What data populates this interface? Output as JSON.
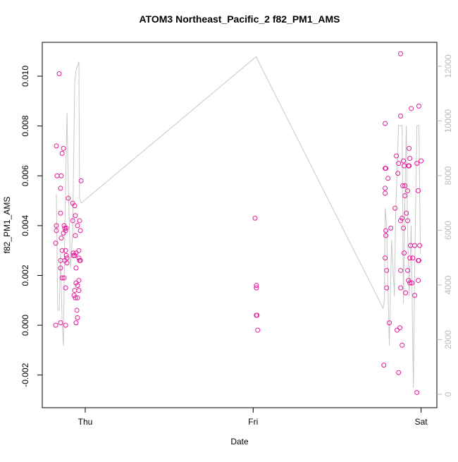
{
  "chart_data": {
    "type": "scatter",
    "title": "ATOM3 Northeast_Pacific_2 f82_PM1_AMS",
    "xlabel": "Date",
    "ylabel": "f82_PM1_AMS",
    "xlim": [
      -0.256,
      2.094
    ],
    "xticks": [
      {
        "value": 0,
        "label": "Thu"
      },
      {
        "value": 1,
        "label": "Fri"
      },
      {
        "value": 2,
        "label": "Sat"
      }
    ],
    "ylim": [
      -0.00331,
      0.01136
    ],
    "yticks": [
      -0.002,
      {
        "value": 0,
        "label": "0.000"
      },
      0.002,
      0.004,
      0.006,
      0.008,
      {
        "value": 0.01,
        "label": "0.010"
      }
    ],
    "y2lim": [
      -490,
      12877
    ],
    "y2ticks": [
      0,
      2000,
      4000,
      6000,
      8000,
      10000,
      12000
    ],
    "y2tick_color": "#bbbbbb",
    "series": [
      {
        "type": "scatter",
        "color": "#e6199a",
        "x": [
          -0.172,
          -0.168,
          -0.172,
          -0.172,
          -0.176,
          -0.176,
          -0.155,
          -0.147,
          -0.147,
          -0.143,
          -0.138,
          -0.13,
          -0.143,
          -0.138,
          -0.147,
          -0.147,
          -0.138,
          -0.126,
          -0.147,
          -0.117,
          -0.126,
          -0.122,
          -0.117,
          -0.13,
          -0.113,
          -0.113,
          -0.109,
          -0.109,
          -0.122,
          -0.117,
          -0.101,
          -0.117,
          -0.075,
          -0.075,
          -0.063,
          -0.059,
          -0.071,
          -0.063,
          -0.055,
          -0.038,
          -0.046,
          -0.034,
          -0.029,
          -0.038,
          -0.034,
          -0.029,
          -0.055,
          -0.055,
          -0.046,
          -0.063,
          -0.067,
          -0.059,
          -0.046,
          -0.038,
          -0.038,
          -0.05,
          -0.046,
          -0.055,
          -0.025,
          -0.059,
          -0.071,
          1.011,
          1.019,
          1.019,
          1.019,
          1.023,
          1.027,
          1.778,
          1.786,
          1.79,
          1.786,
          1.786,
          1.79,
          1.79,
          1.786,
          1.795,
          1.795,
          1.803,
          1.811,
          1.786,
          1.853,
          1.845,
          1.862,
          1.866,
          1.878,
          1.878,
          1.878,
          1.887,
          1.895,
          1.899,
          1.891,
          1.904,
          1.904,
          1.912,
          1.92,
          1.925,
          1.929,
          1.929,
          1.933,
          1.941,
          1.987,
          1.975,
          2.0,
          1.983,
          1.92,
          1.937,
          1.962,
          1.992,
          1.933,
          1.95,
          1.983,
          1.987,
          1.899,
          1.878,
          1.92,
          1.908,
          1.925,
          1.933,
          1.946,
          1.983,
          1.878,
          1.857,
          1.874,
          1.887,
          1.866,
          1.975,
          1.82,
          1.895,
          1.962
        ],
        "values": [
          0.0072,
          0.006,
          0.004,
          0.0038,
          0.0033,
          0.0,
          0.0101,
          0.0055,
          0.0045,
          0.006,
          0.0069,
          0.0071,
          0.0035,
          0.003,
          0.0026,
          0.0023,
          0.0019,
          0.0019,
          0.0001,
          0.0,
          0.004,
          0.0039,
          0.0038,
          0.0037,
          0.0039,
          0.0028,
          0.0027,
          0.0025,
          0.0026,
          0.0015,
          0.0051,
          0.003,
          0.0049,
          0.0042,
          0.0048,
          0.0044,
          0.0029,
          0.0028,
          0.0029,
          0.003,
          0.004,
          0.0042,
          0.0038,
          0.0027,
          0.0026,
          0.0026,
          0.0023,
          0.0017,
          0.0016,
          0.0014,
          0.0012,
          0.0011,
          0.0011,
          0.0018,
          0.0014,
          0.0006,
          0.0003,
          0.0001,
          0.0058,
          0.0036,
          0.0028,
          0.0043,
          0.0016,
          0.0015,
          0.0004,
          0.0004,
          -0.0002,
          -0.0016,
          0.0063,
          0.0063,
          0.0055,
          0.0053,
          0.0038,
          0.0036,
          0.0027,
          0.0022,
          0.0015,
          0.0059,
          0.0001,
          0.0081,
          0.0068,
          0.0047,
          0.0061,
          0.0065,
          0.0109,
          0.0084,
          0.0042,
          0.0043,
          0.0066,
          0.0064,
          0.0056,
          0.0052,
          0.0056,
          0.0045,
          0.0042,
          0.0064,
          0.0064,
          0.0071,
          0.0067,
          0.0087,
          0.0088,
          0.0065,
          0.0066,
          0.0054,
          0.0054,
          0.0032,
          0.0032,
          0.0032,
          0.0027,
          0.0027,
          0.0026,
          0.0026,
          0.0029,
          0.0022,
          0.0022,
          0.0013,
          0.0018,
          0.0017,
          0.0017,
          0.0018,
          0.0015,
          -0.0002,
          -0.0001,
          -0.0008,
          -0.0019,
          -0.0027,
          0.0039,
          0.0039,
          0.0012
        ]
      },
      {
        "type": "line",
        "axis": "y2",
        "color": "#c8c8c8",
        "x": [
          -0.172,
          -0.164,
          -0.155,
          -0.147,
          -0.138,
          -0.13,
          -0.122,
          -0.109,
          -0.101,
          -0.088,
          -0.075,
          -0.067,
          -0.063,
          -0.055,
          -0.038,
          -0.034,
          -0.025,
          1.019,
          1.027,
          1.774,
          1.782,
          1.786,
          1.795,
          1.803,
          1.811,
          1.824,
          1.841,
          1.849,
          1.866,
          1.887,
          1.895,
          1.904,
          1.912,
          1.92,
          1.929,
          1.941,
          1.954,
          1.962,
          1.975,
          1.987,
          1.996
        ],
        "values": [
          7327,
          3070,
          3070,
          5134,
          2683,
          1780,
          5908,
          10294,
          7714,
          4618,
          5908,
          9520,
          11378,
          11842,
          12178,
          7198,
          6992,
          12358,
          12229,
          3148,
          3457,
          6811,
          6166,
          3844,
          1780,
          5650,
          3586,
          6682,
          9830,
          9830,
          3328,
          7198,
          9830,
          5908,
          3586,
          6166,
          232,
          4618,
          9830,
          9830,
          5134
        ]
      }
    ]
  }
}
